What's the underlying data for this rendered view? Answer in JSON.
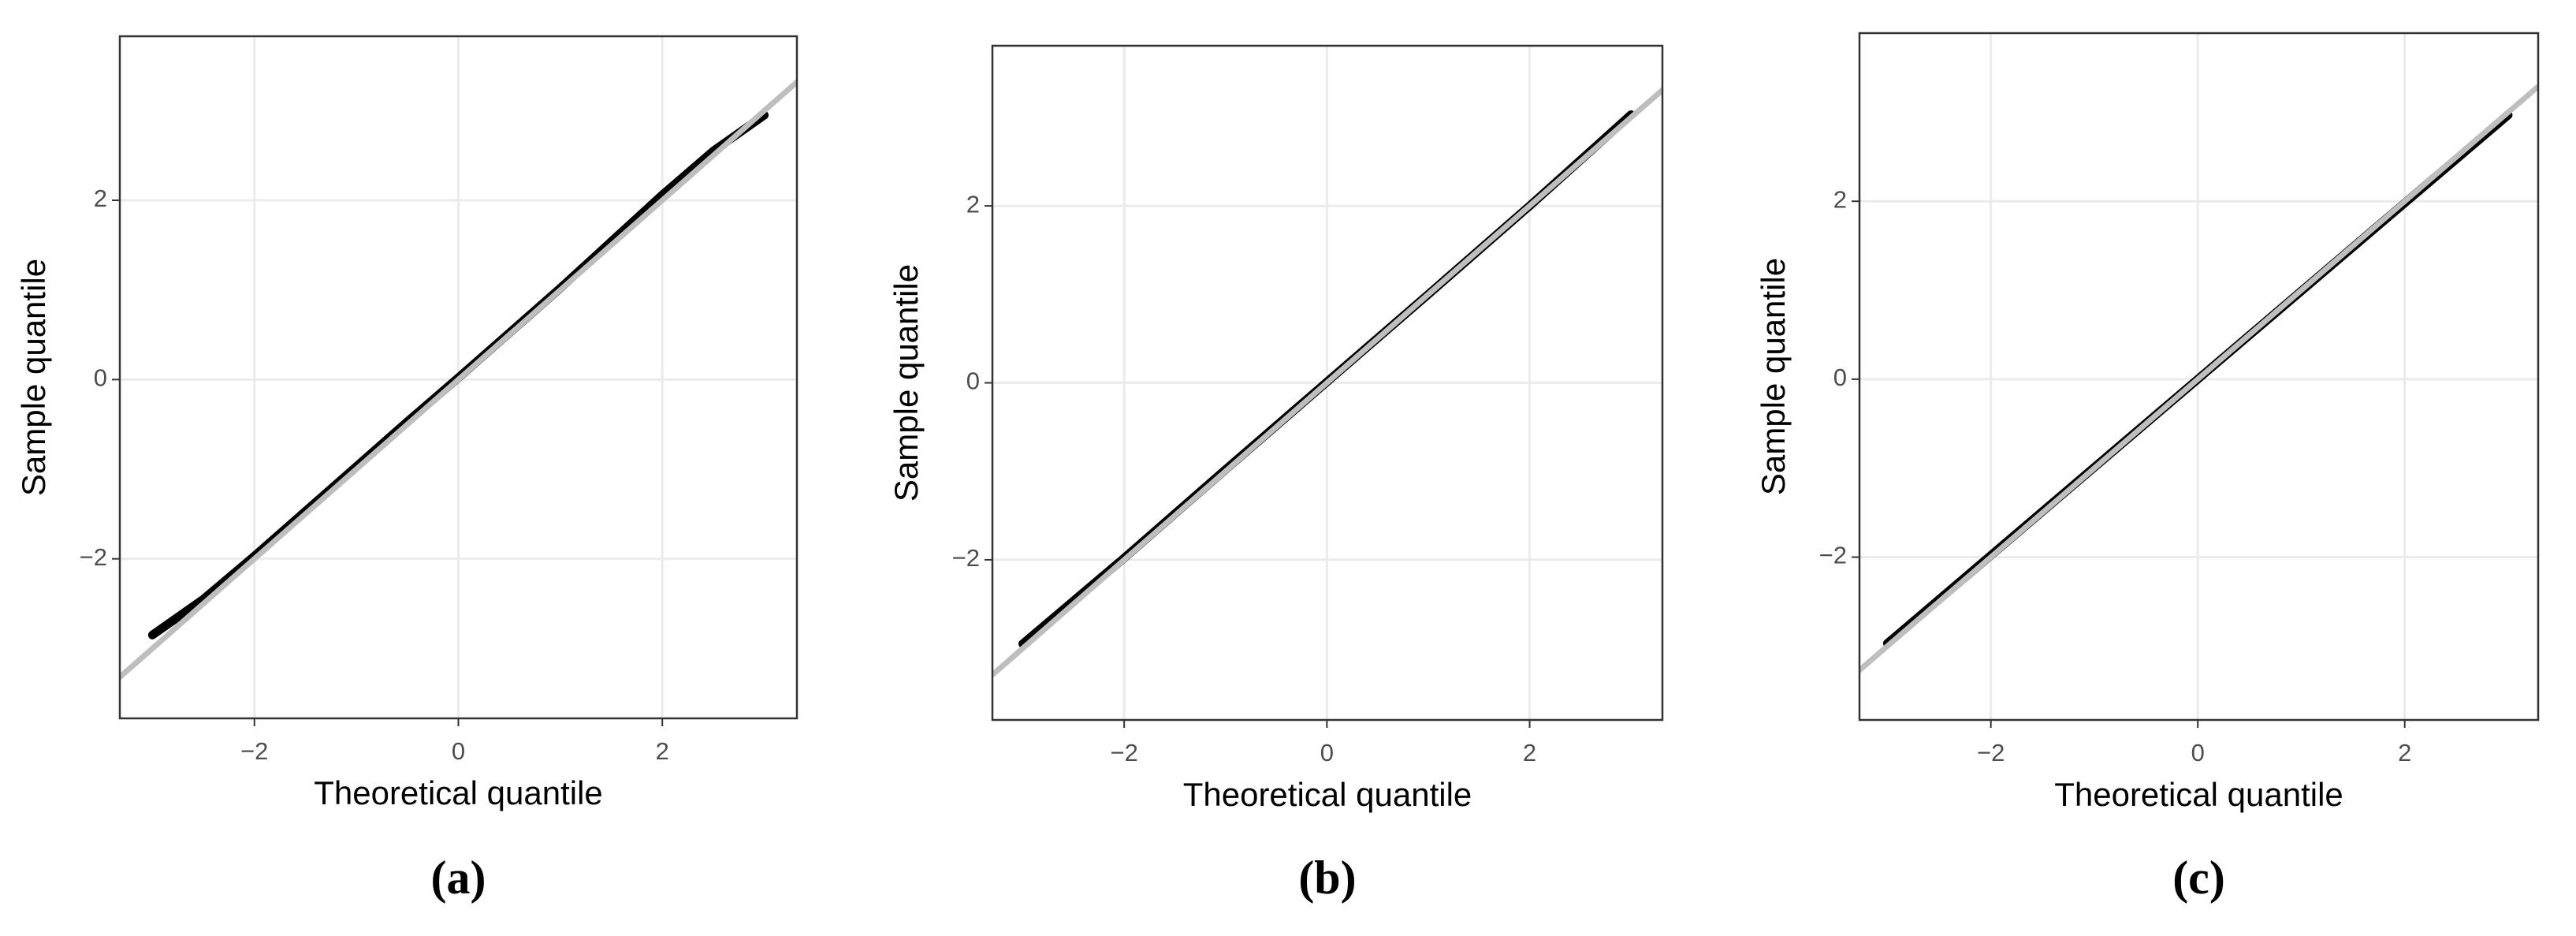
{
  "chart_data": [
    {
      "type": "line",
      "caption": "(a)",
      "x_label": "Theoretical quantile",
      "y_label": "Sample quantile",
      "xlim": [
        -3.32,
        3.32
      ],
      "ylim": [
        -3.78,
        3.83
      ],
      "xticks": [
        {
          "value": -2,
          "label": "−2"
        },
        0,
        2
      ],
      "yticks": [
        {
          "value": -2,
          "label": "−2"
        },
        0,
        2
      ],
      "grid": true,
      "series": [
        {
          "color": "#000000",
          "x": [
            -3,
            -2.5,
            -2,
            -1.5,
            -1,
            -0.5,
            0,
            0.5,
            1,
            1.5,
            2,
            2.5,
            3
          ],
          "values": [
            -2.85,
            -2.45,
            -1.97,
            -1.47,
            -0.97,
            -0.47,
            0.02,
            0.52,
            1.02,
            1.54,
            2.06,
            2.55,
            2.95
          ]
        },
        {
          "color": "#bebebe",
          "x": [
            -3.32,
            3.32
          ],
          "values": [
            -3.32,
            3.32
          ]
        }
      ]
    },
    {
      "type": "line",
      "caption": "(b)",
      "x_label": "Theoretical quantile",
      "y_label": "Sample quantile",
      "xlim": [
        -3.3,
        3.31
      ],
      "ylim": [
        -3.81,
        3.81
      ],
      "xticks": [
        {
          "value": -2,
          "label": "−2"
        },
        0,
        2
      ],
      "yticks": [
        {
          "value": -2,
          "label": "−2"
        },
        0,
        2
      ],
      "grid": true,
      "series": [
        {
          "color": "#000000",
          "x": [
            -3,
            -2,
            -1,
            0,
            1,
            2,
            3
          ],
          "values": [
            -2.95,
            -1.98,
            -0.98,
            0.01,
            1.0,
            2.0,
            3.03
          ]
        },
        {
          "color": "#bebebe",
          "x": [
            -3.3,
            3.31
          ],
          "values": [
            -3.3,
            3.31
          ]
        }
      ]
    },
    {
      "type": "line",
      "caption": "(c)",
      "x_label": "Theoretical quantile",
      "y_label": "Sample quantile",
      "xlim": [
        -3.27,
        3.29
      ],
      "ylim": [
        -3.83,
        3.89
      ],
      "xticks": [
        {
          "value": -2,
          "label": "−2"
        },
        0,
        2
      ],
      "yticks": [
        {
          "value": -2,
          "label": "−2"
        },
        0,
        2
      ],
      "grid": true,
      "series": [
        {
          "color": "#000000",
          "x": [
            -3,
            -2,
            -1,
            0,
            1,
            2,
            3
          ],
          "values": [
            -2.97,
            -1.98,
            -0.99,
            0,
            0.99,
            1.98,
            2.97
          ]
        },
        {
          "color": "#bebebe",
          "x": [
            -3.27,
            3.29
          ],
          "values": [
            -3.27,
            3.29
          ]
        }
      ]
    }
  ]
}
